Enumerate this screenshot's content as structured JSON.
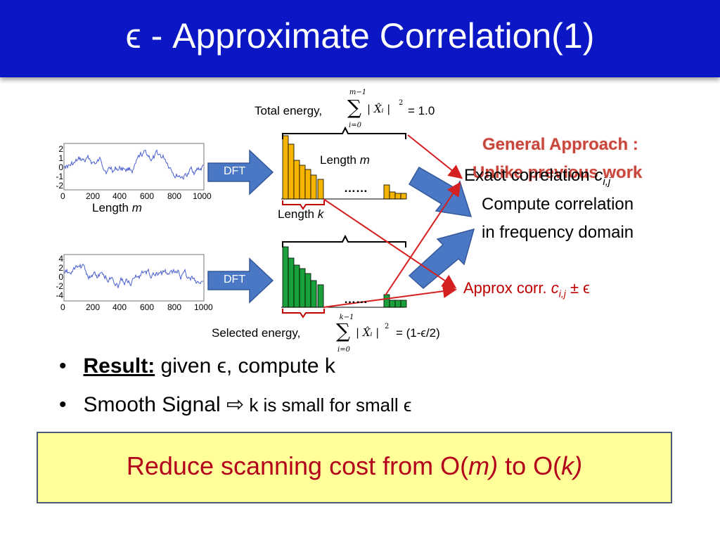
{
  "title": "ϵ - Approximate Correlation(1)",
  "signal_top": {
    "y_ticks": [
      "2",
      "1",
      "0",
      "-1",
      "-2"
    ],
    "x_ticks": [
      "0",
      "200",
      "400",
      "600",
      "800",
      "1000"
    ],
    "length_label": "Length ",
    "length_var": "m"
  },
  "signal_bottom": {
    "y_ticks": [
      "4",
      "2",
      "0",
      "-2",
      "-4"
    ],
    "x_ticks": [
      "0",
      "200",
      "400",
      "600",
      "800",
      "1000"
    ]
  },
  "dft_label": "DFT",
  "total_energy": {
    "label": "Total energy,",
    "sum_top": "m−1",
    "sum_bottom": "i=0",
    "term": "| X̂ᵢ |",
    "exp": "2",
    "value": "= 1.0"
  },
  "selected_energy": {
    "label": "Selected energy,",
    "sum_top": "k−1",
    "sum_bottom": "i=0",
    "term": "| X̂ᵢ |",
    "exp": "2",
    "value": "= (1-ϵ/2)"
  },
  "spectrum": {
    "length_m_label": "Length ",
    "length_m_var": "m",
    "length_k_label": "Length ",
    "length_k_var": "k",
    "dots": "……",
    "top_color": "#f5b400",
    "bottom_color": "#1aa13b"
  },
  "general_approach": {
    "line1": "General Approach :",
    "line2": "Unlike previous work"
  },
  "exact_corr": {
    "prefix": "Exact correlation ",
    "var": "c",
    "sub": "i,j"
  },
  "compute_line1": "Compute correlation",
  "compute_line2": "in frequency domain",
  "approx_corr": {
    "prefix": "Approx corr. ",
    "var": "c",
    "sub": "i,j",
    "suffix": " ± ϵ"
  },
  "bullets": [
    {
      "bold": "Result:",
      "rest": " given ϵ, compute k"
    },
    {
      "text": "Smooth Signal ",
      "arrow": "⇨",
      "rest": " k is small for small ϵ"
    }
  ],
  "conclusion": {
    "prefix": "Reduce scanning cost from O(",
    "m": "m)",
    "mid": " to O(",
    "k": "k)"
  },
  "colors": {
    "title_bg": "#0b17c4",
    "dft_arrow": "#4a78c4",
    "red_arrow": "#d42020",
    "conclusion_text": "#b3001b",
    "box_bg": "#ffff99"
  }
}
